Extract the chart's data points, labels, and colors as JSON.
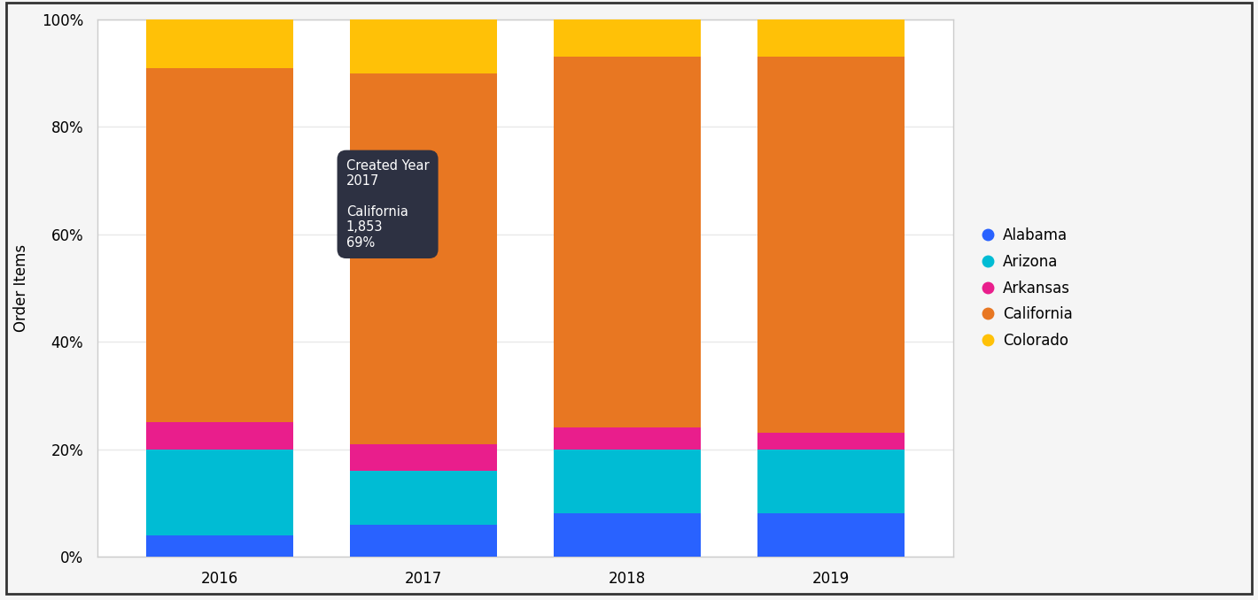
{
  "years": [
    2016,
    2017,
    2018,
    2019
  ],
  "states": [
    "Alabama",
    "Arizona",
    "Arkansas",
    "California",
    "Colorado"
  ],
  "colors": [
    "#2962FF",
    "#00BCD4",
    "#E91E8C",
    "#E87722",
    "#FFC107"
  ],
  "percentages": {
    "Alabama": [
      0.04,
      0.06,
      0.08,
      0.08
    ],
    "Arizona": [
      0.16,
      0.1,
      0.12,
      0.12
    ],
    "Arkansas": [
      0.05,
      0.05,
      0.04,
      0.03
    ],
    "California": [
      0.66,
      0.69,
      0.69,
      0.7
    ],
    "Colorado": [
      0.09,
      0.1,
      0.07,
      0.07
    ]
  },
  "ylabel": "Order Items",
  "background_color": "#f5f5f5",
  "plot_bg_color": "#ffffff",
  "bar_width": 0.72,
  "tooltip": {
    "text": "Created Year\n2017\n\nCalifornia\n1,853\n69%",
    "bg_color": "#2D3142",
    "text_color": "#ffffff"
  },
  "legend_labels": [
    "Alabama",
    "Arizona",
    "Arkansas",
    "California",
    "Colorado"
  ],
  "grid_color": "#e8e8e8",
  "spine_color": "#cccccc",
  "axis_fontsize": 12,
  "tick_fontsize": 12
}
